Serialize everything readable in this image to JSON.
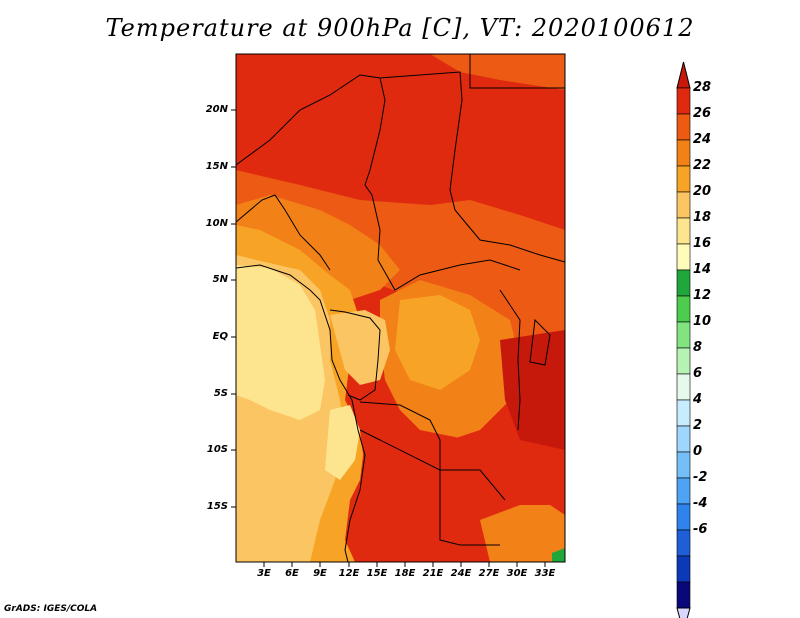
{
  "title": "Temperature at 900hPa [C], VT: 2020100612",
  "credit": "GrADS: IGES/COLA",
  "map": {
    "lat_labels": [
      "20N",
      "15N",
      "10N",
      "5N",
      "EQ",
      "5S",
      "10S",
      "15S"
    ],
    "lon_labels": [
      "3E",
      "6E",
      "9E",
      "12E",
      "15E",
      "18E",
      "21E",
      "24E",
      "27E",
      "30E",
      "33E"
    ]
  },
  "colorbar": {
    "labels": [
      "28",
      "26",
      "24",
      "22",
      "20",
      "18",
      "16",
      "14",
      "12",
      "10",
      "8",
      "6",
      "4",
      "2",
      "0",
      "-2",
      "-4",
      "-6"
    ],
    "colors": [
      "#d8d8ff",
      "#08087a",
      "#0b39b8",
      "#1e5fd8",
      "#2f83ec",
      "#4fa3f4",
      "#74bff8",
      "#9fd6fb",
      "#c7ecfd",
      "#e6f9ea",
      "#b7f2b5",
      "#82e47f",
      "#4dcc4d",
      "#20a73c",
      "#fffbb8",
      "#fde58f",
      "#fbc563",
      "#f7a326",
      "#f28117",
      "#ec5a13",
      "#e02a10",
      "#c7180c"
    ]
  }
}
